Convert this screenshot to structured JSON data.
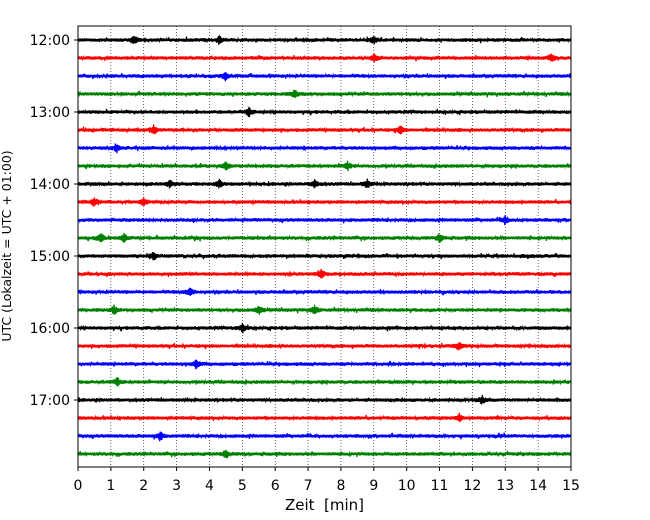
{
  "chart_data": {
    "type": "line",
    "title": "",
    "xlabel": "Zeit  [min]",
    "ylabel": "UTC (Lokalzeit = UTC + 01:00)",
    "xlim": [
      0,
      15
    ],
    "x_ticks": [
      "0",
      "1",
      "2",
      "3",
      "4",
      "5",
      "6",
      "7",
      "8",
      "9",
      "10",
      "11",
      "12",
      "13",
      "14",
      "15"
    ],
    "y_ticks": [
      "12:00",
      "13:00",
      "14:00",
      "15:00",
      "16:00",
      "17:00"
    ],
    "grid": "vertical dotted lines at each minute",
    "legend": "none",
    "trace_interval_minutes": 15,
    "first_trace": "12:00",
    "trace_count": 24,
    "series_colors": [
      "#000000",
      "#ff0000",
      "#0000ff",
      "#008000"
    ],
    "events": [
      {
        "trace": "12:00",
        "minutes": [
          1.7,
          4.3,
          9.0
        ]
      },
      {
        "trace": "12:15",
        "minutes": [
          9.0,
          14.4
        ]
      },
      {
        "trace": "12:30",
        "minutes": [
          4.5
        ]
      },
      {
        "trace": "12:45",
        "minutes": [
          6.6
        ]
      },
      {
        "trace": "13:00",
        "minutes": [
          5.2
        ]
      },
      {
        "trace": "13:15",
        "minutes": [
          2.3,
          9.8
        ]
      },
      {
        "trace": "13:30",
        "minutes": [
          1.2
        ]
      },
      {
        "trace": "13:45",
        "minutes": [
          4.5,
          8.2
        ]
      },
      {
        "trace": "14:00",
        "minutes": [
          2.8,
          4.3,
          7.2,
          8.8
        ]
      },
      {
        "trace": "14:15",
        "minutes": [
          0.5,
          2.0
        ]
      },
      {
        "trace": "14:30",
        "minutes": [
          13.0
        ]
      },
      {
        "trace": "14:45",
        "minutes": [
          0.7,
          1.4,
          11.0
        ]
      },
      {
        "trace": "15:00",
        "minutes": [
          2.3
        ]
      },
      {
        "trace": "15:15",
        "minutes": [
          7.4
        ]
      },
      {
        "trace": "15:30",
        "minutes": [
          3.4
        ]
      },
      {
        "trace": "15:45",
        "minutes": [
          1.1,
          5.5,
          7.2
        ]
      },
      {
        "trace": "16:00",
        "minutes": [
          5.0
        ]
      },
      {
        "trace": "16:15",
        "minutes": [
          11.6
        ]
      },
      {
        "trace": "16:30",
        "minutes": [
          3.6
        ]
      },
      {
        "trace": "16:45",
        "minutes": [
          1.2
        ]
      },
      {
        "trace": "17:00",
        "minutes": [
          12.3
        ]
      },
      {
        "trace": "17:15",
        "minutes": [
          11.6
        ]
      },
      {
        "trace": "17:30",
        "minutes": [
          2.5
        ]
      },
      {
        "trace": "17:45",
        "minutes": [
          4.5
        ]
      }
    ]
  }
}
